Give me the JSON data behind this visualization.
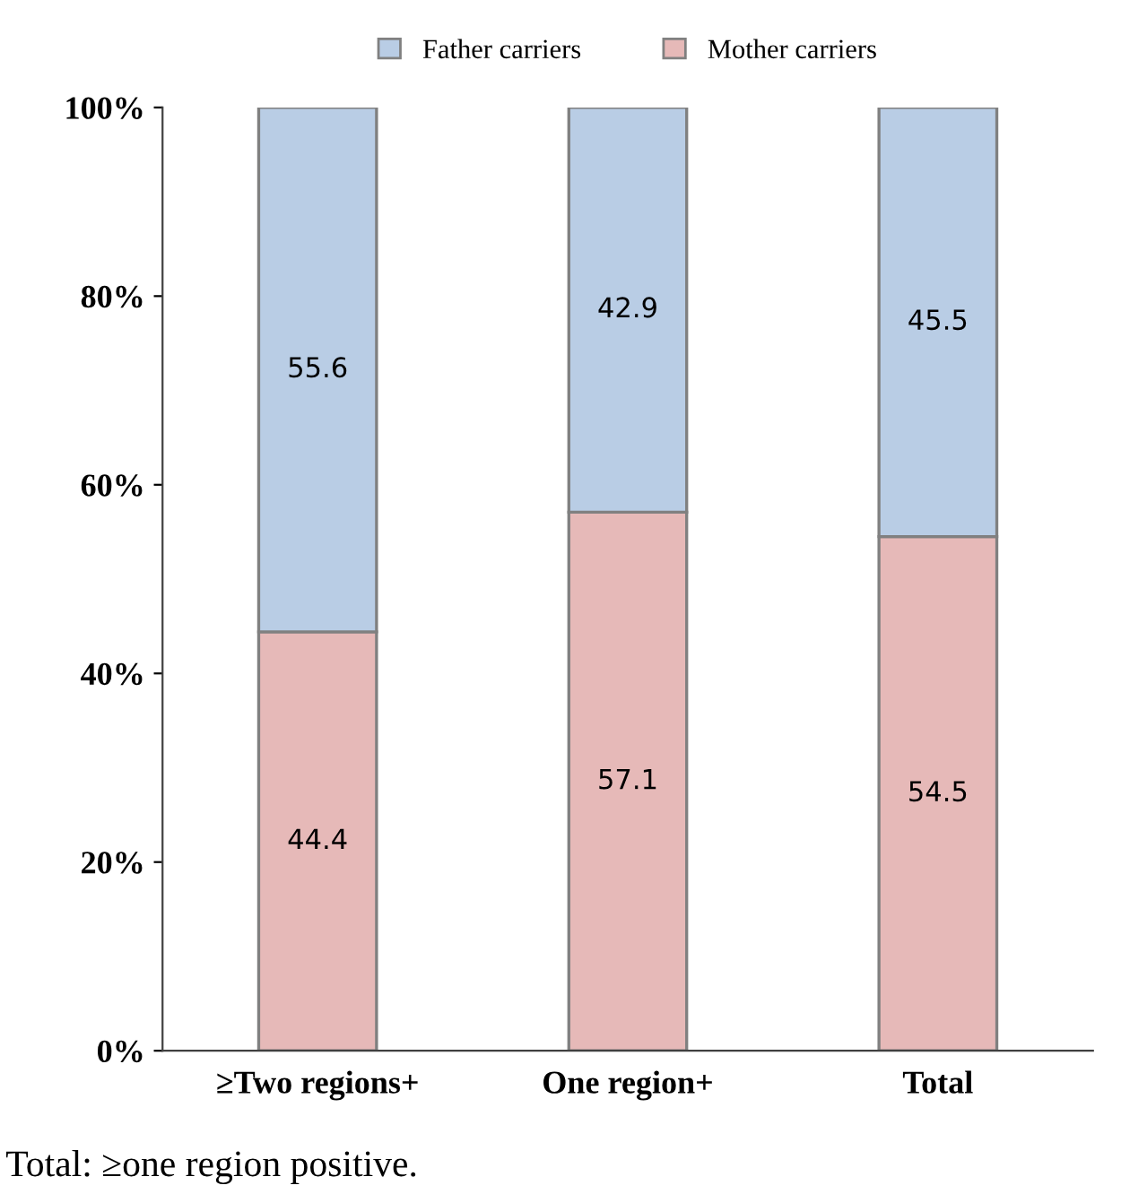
{
  "chart_data": {
    "type": "bar",
    "stacked": true,
    "categories": [
      "≥Two regions+",
      "One region+",
      "Total"
    ],
    "series": [
      {
        "name": "Mother carriers",
        "color": "#e6b9b8",
        "values": [
          44.4,
          57.1,
          54.5
        ]
      },
      {
        "name": "Father carriers",
        "color": "#b9cde5",
        "values": [
          55.6,
          42.9,
          45.5
        ]
      }
    ],
    "ylim": [
      0,
      100
    ],
    "yticks": [
      {
        "value": 0,
        "label": "0%"
      },
      {
        "value": 20,
        "label": "20%"
      },
      {
        "value": 40,
        "label": "40%"
      },
      {
        "value": 60,
        "label": "60%"
      },
      {
        "value": 80,
        "label": "80%"
      },
      {
        "value": 100,
        "label": "100%"
      }
    ],
    "data_labels": true,
    "legend": "top",
    "grid": false,
    "annotations": [
      "Total: ≥one region positive."
    ]
  }
}
